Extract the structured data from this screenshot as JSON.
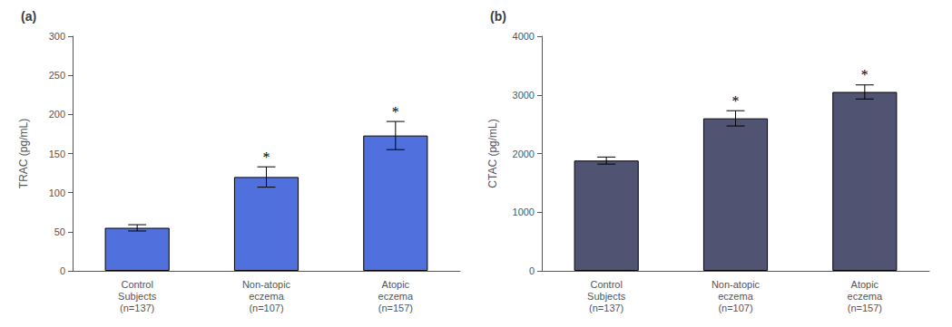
{
  "chart_data": [
    {
      "type": "bar",
      "title": "(a)",
      "ylabel": "TRAC (pg/mL)",
      "categories": [
        "Control\nSubjects\n(n=137)",
        "Non-atopic\neczema\n(n=107)",
        "Atopic\neczema\n(n=157)"
      ],
      "values": [
        55,
        120,
        173
      ],
      "errors": [
        4,
        13,
        18
      ],
      "annotations": [
        {
          "category": "Non-atopic\neczema\n(n=107)",
          "text": "*"
        },
        {
          "category": "Atopic\neczema\n(n=157)",
          "text": "*"
        }
      ],
      "ylim": [
        0,
        300
      ],
      "yticks": [
        0,
        50,
        100,
        150,
        200,
        250,
        300
      ],
      "grid": false
    },
    {
      "type": "bar",
      "title": "(b)",
      "ylabel": "CTAC (pg/mL)",
      "categories": [
        "Control\nSubjects\n(n=137)",
        "Non-atopic\neczema\n(n=107)",
        "Atopic\neczema\n(n=157)"
      ],
      "values": [
        1880,
        2600,
        3050
      ],
      "errors": [
        60,
        130,
        120
      ],
      "annotations": [
        {
          "category": "Non-atopic\neczema\n(n=107)",
          "text": "*"
        },
        {
          "category": "Atopic\neczema\n(n=157)",
          "text": "*"
        }
      ],
      "ylim": [
        0,
        4000
      ],
      "yticks": [
        0,
        1000,
        2000,
        3000,
        4000
      ],
      "grid": false
    }
  ]
}
